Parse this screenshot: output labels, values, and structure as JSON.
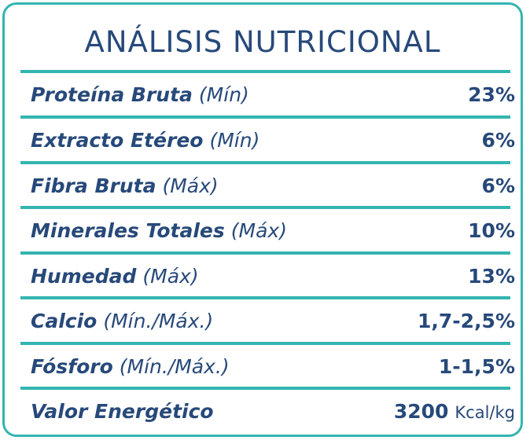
{
  "title": "ANÁLISIS NUTRICIONAL",
  "rows": [
    {
      "name": "Proteína Bruta",
      "qualifier": "(Mín)",
      "value": "23%"
    },
    {
      "name": "Extracto Etéreo",
      "qualifier": "(Mín)",
      "value": "6%"
    },
    {
      "name": "Fibra Bruta",
      "qualifier": "(Máx)",
      "value": "6%"
    },
    {
      "name": "Minerales Totales",
      "qualifier": "(Máx)",
      "value": "10%"
    },
    {
      "name": "Humedad",
      "qualifier": "(Máx)",
      "value": "13%"
    },
    {
      "name": "Calcio",
      "qualifier": "(Mín./Máx.)",
      "value": "1,7-2,5%"
    },
    {
      "name": "Fósforo",
      "qualifier": "(Mín./Máx.)",
      "value": "1-1,5%"
    }
  ],
  "energy": {
    "name": "Valor Energético",
    "value": "3200",
    "unit": "Kcal/kg"
  },
  "colors": {
    "accent": "#33b5b0",
    "text": "#27497a"
  }
}
